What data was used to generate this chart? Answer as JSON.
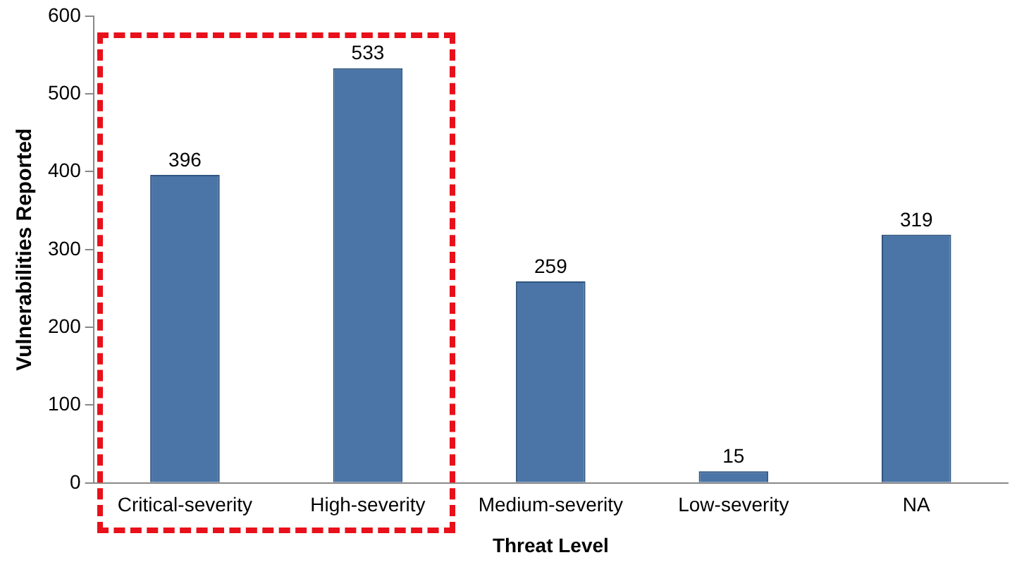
{
  "chart_data": {
    "type": "bar",
    "xlabel": "Threat Level",
    "ylabel": "Vulnerabilities Reported",
    "categories": [
      "Critical-severity",
      "High-severity",
      "Medium-severity",
      "Low-severity",
      "NA"
    ],
    "values": [
      396,
      533,
      259,
      15,
      319
    ],
    "color": "#4a75a6",
    "ylim": [
      0,
      600
    ],
    "yticks": [
      0,
      100,
      200,
      300,
      400,
      500,
      600
    ],
    "grid": false,
    "legend": false,
    "data_labels": true
  }
}
